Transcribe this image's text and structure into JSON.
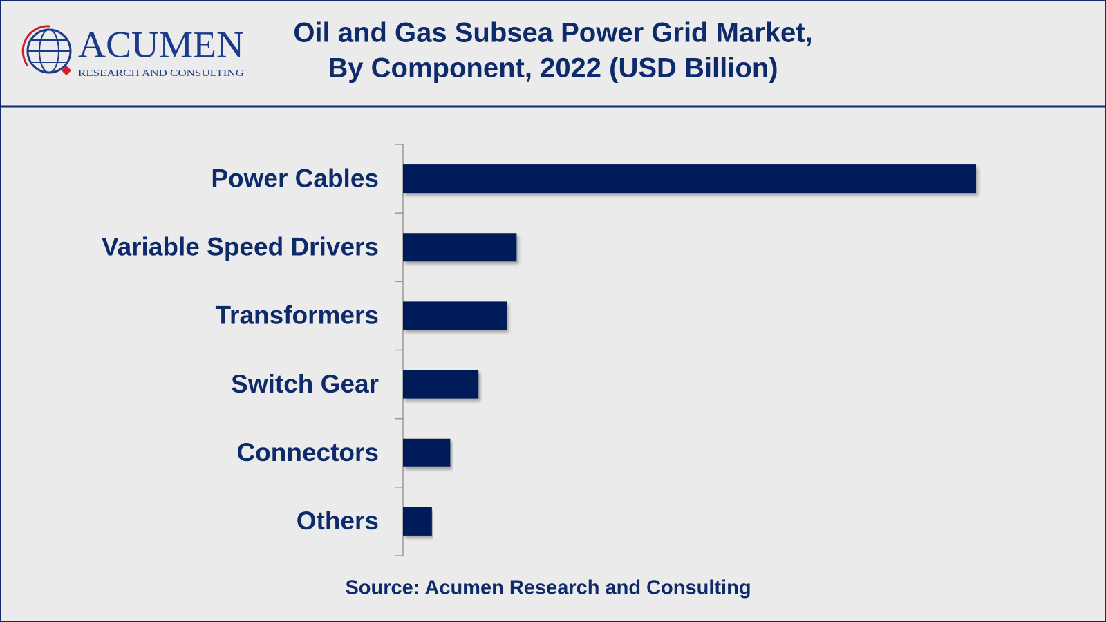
{
  "logo": {
    "name": "ACUMEN",
    "tagline": "RESEARCH AND CONSULTING"
  },
  "chart_data": {
    "type": "barh",
    "title": [
      "Oil and Gas Subsea Power Grid  Market,",
      "By Component, 2022 (USD Billion)"
    ],
    "categories": [
      "Power Cables",
      "Variable Speed Drivers",
      "Transformers",
      "Switch Gear",
      "Connectors",
      "Others"
    ],
    "values": [
      8.12,
      1.61,
      1.47,
      1.07,
      0.67,
      0.41
    ],
    "color": "#001c58",
    "source": "Source: Acumen Research and Consulting"
  }
}
